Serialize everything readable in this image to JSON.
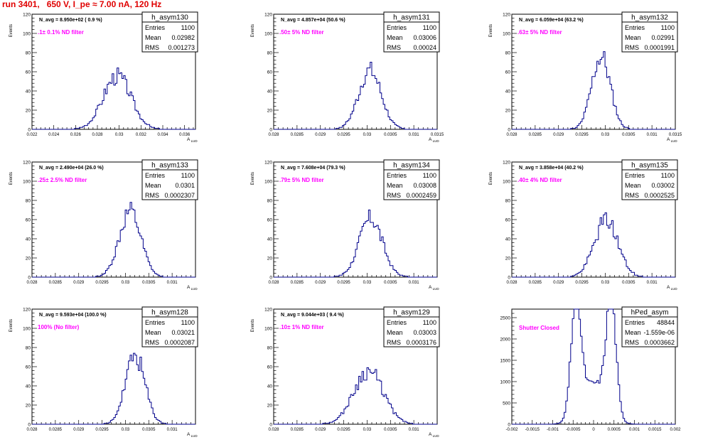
{
  "title": "run 3401,   650 V, I_pe ≈ 7.00 nA, 120 Hz",
  "colors": {
    "title": "#e00000",
    "hist": "#00008b",
    "note": "#ff00ff",
    "axis": "#000000",
    "box_bg": "#ffffff"
  },
  "chart_data": [
    {
      "type": "histogram",
      "name": "h_asym130",
      "stats": {
        "Entries": "1100",
        "Mean": "0.02982",
        "RMS": "0.001273"
      },
      "navg": "N_avg = 8.950e+02 ( 0.9 %)",
      "note": ".1± 0.1% ND filter",
      "ylabel": "Events",
      "xlabel": "A_LUD",
      "xlim": [
        0.022,
        0.037
      ],
      "ylim": [
        0,
        120
      ],
      "xticks": [
        0.022,
        0.024,
        0.026,
        0.028,
        0.03,
        0.032,
        0.034,
        0.036
      ],
      "xtick_labels": [
        "0.022",
        "0.024",
        "0.026",
        "0.028",
        "0.03",
        "0.032",
        "0.034",
        "0.036"
      ],
      "yticks": [
        0,
        20,
        40,
        60,
        80,
        100,
        120
      ],
      "mean": 0.02982,
      "rms": 0.001273,
      "peak": 60,
      "shape": "gauss",
      "seed": 3
    },
    {
      "type": "histogram",
      "name": "h_asym131",
      "stats": {
        "Entries": "1100",
        "Mean": "0.03006",
        "RMS": "0.00024"
      },
      "navg": "N_avg = 4.857e+04 (50.6 %)",
      "note": ".50± 5% ND filter",
      "ylabel": "Events",
      "xlabel": "A_LUD",
      "xlim": [
        0.028,
        0.0315
      ],
      "ylim": [
        0,
        120
      ],
      "xticks": [
        0.028,
        0.0285,
        0.029,
        0.0295,
        0.03,
        0.0305,
        0.031,
        0.0315
      ],
      "xtick_labels": [
        "0.028",
        "0.0285",
        "0.029",
        "0.0295",
        "0.03",
        "0.0305",
        "0.031",
        "0.0315"
      ],
      "yticks": [
        0,
        20,
        40,
        60,
        80,
        100,
        120
      ],
      "mean": 0.03006,
      "rms": 0.00024,
      "peak": 66,
      "shape": "gauss",
      "seed": 7
    },
    {
      "type": "histogram",
      "name": "h_asym132",
      "stats": {
        "Entries": "1100",
        "Mean": "0.02991",
        "RMS": "0.0001991"
      },
      "navg": "N_avg = 6.059e+04 (63.2 %)",
      "note": ".63± 5% ND filter",
      "ylabel": "Events",
      "xlabel": "A_LUD",
      "xlim": [
        0.028,
        0.0315
      ],
      "ylim": [
        0,
        120
      ],
      "xticks": [
        0.028,
        0.0285,
        0.029,
        0.0295,
        0.03,
        0.0305,
        0.031,
        0.0315
      ],
      "xtick_labels": [
        "0.028",
        "0.0285",
        "0.029",
        "0.0295",
        "0.03",
        "0.0305",
        "0.031",
        "0.0315"
      ],
      "yticks": [
        0,
        20,
        40,
        60,
        80,
        100,
        120
      ],
      "mean": 0.02991,
      "rms": 0.0001991,
      "peak": 82,
      "shape": "gauss",
      "seed": 11
    },
    {
      "type": "histogram",
      "name": "h_asym133",
      "stats": {
        "Entries": "1100",
        "Mean": "0.0301",
        "RMS": "0.0002307"
      },
      "navg": "N_avg = 2.490e+04 (26.0 %)",
      "note": ".25± 2.5% ND filter",
      "ylabel": "Events",
      "xlabel": "A_LUD",
      "xlim": [
        0.028,
        0.0315
      ],
      "ylim": [
        0,
        120
      ],
      "xticks": [
        0.028,
        0.0285,
        0.029,
        0.0295,
        0.03,
        0.0305,
        0.031
      ],
      "xtick_labels": [
        "0.028",
        "0.0285",
        "0.029",
        "0.0295",
        "0.03",
        "0.0305",
        "0.031"
      ],
      "yticks": [
        0,
        20,
        40,
        60,
        80,
        100,
        120
      ],
      "mean": 0.0301,
      "rms": 0.0002307,
      "peak": 74,
      "shape": "gauss",
      "seed": 13
    },
    {
      "type": "histogram",
      "name": "h_asym134",
      "stats": {
        "Entries": "1100",
        "Mean": "0.03008",
        "RMS": "0.0002459"
      },
      "navg": "N_avg = 7.608e+04 (79.3 %)",
      "note": ".79± 5% ND filter",
      "ylabel": "Events",
      "xlabel": "A_LUD",
      "xlim": [
        0.028,
        0.0315
      ],
      "ylim": [
        0,
        120
      ],
      "xticks": [
        0.028,
        0.0285,
        0.029,
        0.0295,
        0.03,
        0.0305,
        0.031
      ],
      "xtick_labels": [
        "0.028",
        "0.0285",
        "0.029",
        "0.0295",
        "0.03",
        "0.0305",
        "0.031"
      ],
      "yticks": [
        0,
        20,
        40,
        60,
        80,
        100,
        120
      ],
      "mean": 0.03008,
      "rms": 0.0002459,
      "peak": 66,
      "shape": "gauss",
      "seed": 17
    },
    {
      "type": "histogram",
      "name": "h_asym135",
      "stats": {
        "Entries": "1100",
        "Mean": "0.03002",
        "RMS": "0.0002525"
      },
      "navg": "N_avg = 3.858e+04 (40.2 %)",
      "note": ".40± 4% ND filter",
      "ylabel": "Events",
      "xlabel": "A_LUD",
      "xlim": [
        0.028,
        0.0315
      ],
      "ylim": [
        0,
        120
      ],
      "xticks": [
        0.028,
        0.0285,
        0.029,
        0.0295,
        0.03,
        0.0305,
        0.031
      ],
      "xtick_labels": [
        "0.028",
        "0.0285",
        "0.029",
        "0.0295",
        "0.03",
        "0.0305",
        "0.031"
      ],
      "yticks": [
        0,
        20,
        40,
        60,
        80,
        100,
        120
      ],
      "mean": 0.03002,
      "rms": 0.0002525,
      "peak": 64,
      "shape": "gauss",
      "seed": 19
    },
    {
      "type": "histogram",
      "name": "h_asym128",
      "stats": {
        "Entries": "1100",
        "Mean": "0.03021",
        "RMS": "0.0002087"
      },
      "navg": "N_avg = 9.593e+04 (100.0 %)",
      "note": "100% (No filter)",
      "ylabel": "Events",
      "xlabel": "A_LUD",
      "xlim": [
        0.028,
        0.0315
      ],
      "ylim": [
        0,
        120
      ],
      "xticks": [
        0.028,
        0.0285,
        0.029,
        0.0295,
        0.03,
        0.0305,
        0.031
      ],
      "xtick_labels": [
        "0.028",
        "0.0285",
        "0.029",
        "0.0295",
        "0.03",
        "0.0305",
        "0.031"
      ],
      "yticks": [
        0,
        20,
        40,
        60,
        80,
        100,
        120
      ],
      "mean": 0.03021,
      "rms": 0.0002087,
      "peak": 76,
      "shape": "gauss",
      "seed": 23
    },
    {
      "type": "histogram",
      "name": "h_asym129",
      "stats": {
        "Entries": "1100",
        "Mean": "0.03003",
        "RMS": "0.0003176"
      },
      "navg": "N_avg = 9.044e+03 ( 9.4 %)",
      "note": ".10± 1% ND filter",
      "ylabel": "Events",
      "xlabel": "A_LUD",
      "xlim": [
        0.028,
        0.0315
      ],
      "ylim": [
        0,
        120
      ],
      "xticks": [
        0.028,
        0.0285,
        0.029,
        0.0295,
        0.03,
        0.0305,
        0.031
      ],
      "xtick_labels": [
        "0.028",
        "0.0285",
        "0.029",
        "0.0295",
        "0.03",
        "0.0305",
        "0.031"
      ],
      "yticks": [
        0,
        20,
        40,
        60,
        80,
        100,
        120
      ],
      "mean": 0.03003,
      "rms": 0.0003176,
      "peak": 60,
      "shape": "gauss",
      "seed": 29
    },
    {
      "type": "histogram",
      "name": "hPed_asym",
      "stats": {
        "Entries": "48844",
        "Mean": "-1.559e-06",
        "RMS": "0.0003662"
      },
      "navg": "",
      "note": "Shutter Closed",
      "ylabel": "",
      "xlabel": "",
      "xlim": [
        -0.002,
        0.002
      ],
      "ylim": [
        0,
        2700
      ],
      "xticks": [
        -0.002,
        -0.0015,
        -0.001,
        -0.0005,
        0,
        0.0005,
        0.001,
        0.0015,
        0.002
      ],
      "xtick_labels": [
        "-0.002",
        "-0.0015",
        "-0.001",
        "-0.0005",
        "0",
        "0.0005",
        "0.001",
        "0.0015",
        "0.002"
      ],
      "yticks": [
        0,
        500,
        1000,
        1500,
        2000,
        2500
      ],
      "mean": -1.6e-06,
      "rms": 0.0003662,
      "peak": 2700,
      "shape": "double",
      "seed": 31
    }
  ]
}
